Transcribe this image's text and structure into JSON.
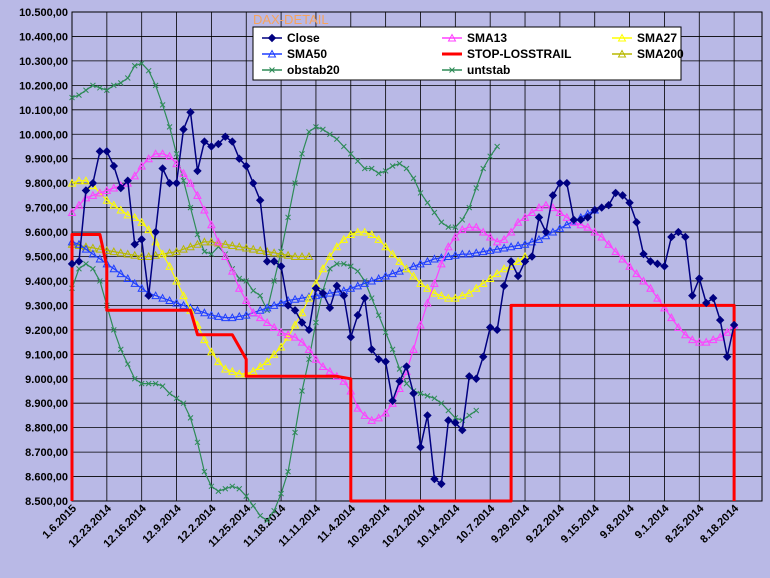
{
  "chart_data": {
    "type": "line",
    "title": "DAX-DETAIL",
    "ylim": [
      8500,
      10500
    ],
    "y_tick_step": 100,
    "x_tick_labels": [
      "1.6.2015",
      "12.23.2014",
      "12.16.2014",
      "12.9.2014",
      "12.2.2014",
      "11.25.2014",
      "11.18.2014",
      "11.11.2014",
      "11.4.2014",
      "10.28.2014",
      "10.21.2014",
      "10.14.2014",
      "10.7.2014",
      "9.29.2014",
      "9.22.2014",
      "9.15.2014",
      "9.8.2014",
      "9.1.2014",
      "8.25.2014",
      "8.18.2014"
    ],
    "points_per_label": 5,
    "legend": [
      {
        "name": "Close",
        "color": "#000080",
        "marker": "diamond"
      },
      {
        "name": "SMA13",
        "color": "#ff40ff",
        "marker": "triangle"
      },
      {
        "name": "SMA27",
        "color": "#ffff00",
        "marker": "triangle"
      },
      {
        "name": "SMA50",
        "color": "#1f3fff",
        "marker": "triangle"
      },
      {
        "name": "STOP-LOSSTRAIL",
        "color": "#ff0000",
        "marker": "none"
      },
      {
        "name": "SMA200",
        "color": "#b8b800",
        "marker": "triangle"
      },
      {
        "name": "obstab20",
        "color": "#2e8b57",
        "marker": "x"
      },
      {
        "name": "untstab",
        "color": "#2e8b57",
        "marker": "x"
      }
    ],
    "series": [
      {
        "name": "Close",
        "color": "#000080",
        "width": 1.5,
        "marker": "diamond",
        "values": [
          9470,
          9480,
          9770,
          9800,
          9930,
          9930,
          9870,
          9780,
          9810,
          9550,
          9570,
          9340,
          9600,
          9860,
          9800,
          9800,
          10020,
          10090,
          9850,
          9970,
          9950,
          9960,
          9990,
          9970,
          9900,
          9870,
          9800,
          9730,
          9480,
          9480,
          9460,
          9300,
          9280,
          9230,
          9200,
          9370,
          9350,
          9290,
          9380,
          9340,
          9170,
          9260,
          9330,
          9120,
          9080,
          9070,
          8910,
          8990,
          9050,
          8940,
          8720,
          8850,
          8590,
          8570,
          8830,
          8820,
          8790,
          9010,
          9000,
          9090,
          9210,
          9200,
          9380,
          9480,
          9420,
          9480,
          9500,
          9660,
          9600,
          9750,
          9800,
          9800,
          9650,
          9650,
          9660,
          9690,
          9700,
          9710,
          9760,
          9750,
          9720,
          9640,
          9510,
          9480,
          9470,
          9460,
          9580,
          9600,
          9580,
          9340,
          9410,
          9310,
          9330,
          9240,
          9090,
          9220
        ]
      },
      {
        "name": "SMA13",
        "color": "#ff40ff",
        "width": 1.2,
        "marker": "triangle",
        "values": [
          9680,
          9710,
          9740,
          9750,
          9760,
          9770,
          9780,
          9790,
          9800,
          9830,
          9870,
          9900,
          9920,
          9920,
          9910,
          9880,
          9840,
          9800,
          9750,
          9690,
          9630,
          9560,
          9500,
          9440,
          9370,
          9320,
          9270,
          9250,
          9230,
          9210,
          9190,
          9180,
          9170,
          9150,
          9120,
          9080,
          9050,
          9030,
          9010,
          8990,
          8950,
          8880,
          8850,
          8830,
          8840,
          8860,
          8900,
          8960,
          9030,
          9120,
          9220,
          9310,
          9390,
          9470,
          9540,
          9580,
          9610,
          9620,
          9620,
          9600,
          9580,
          9560,
          9570,
          9600,
          9640,
          9660,
          9680,
          9700,
          9710,
          9700,
          9680,
          9660,
          9640,
          9630,
          9620,
          9600,
          9580,
          9550,
          9520,
          9490,
          9460,
          9430,
          9400,
          9370,
          9330,
          9290,
          9250,
          9210,
          9180,
          9160,
          9150,
          9150,
          9160,
          9170,
          9190,
          9220
        ]
      },
      {
        "name": "SMA27",
        "color": "#ffff00",
        "width": 1.2,
        "marker": "triangle",
        "values": [
          9800,
          9810,
          9810,
          9790,
          9760,
          9730,
          9710,
          9690,
          9670,
          9660,
          9640,
          9610,
          9560,
          9510,
          9460,
          9400,
          9340,
          9280,
          9220,
          9160,
          9110,
          9070,
          9040,
          9030,
          9020,
          9020,
          9030,
          9050,
          9070,
          9100,
          9130,
          9170,
          9220,
          9270,
          9330,
          9390,
          9450,
          9500,
          9540,
          9570,
          9590,
          9600,
          9600,
          9590,
          9570,
          9540,
          9510,
          9480,
          9450,
          9420,
          9390,
          9370,
          9350,
          9340,
          9330,
          9330,
          9340,
          9350,
          9370,
          9390,
          9410,
          9430,
          9450,
          9460,
          9480,
          9500
        ]
      },
      {
        "name": "SMA50",
        "color": "#1f3fff",
        "width": 1.2,
        "marker": "triangle",
        "values": [
          9560,
          9550,
          9530,
          9510,
          9490,
          9470,
          9450,
          9430,
          9410,
          9390,
          9370,
          9350,
          9340,
          9330,
          9320,
          9310,
          9300,
          9290,
          9280,
          9270,
          9260,
          9255,
          9250,
          9250,
          9255,
          9260,
          9270,
          9280,
          9290,
          9300,
          9310,
          9320,
          9325,
          9330,
          9335,
          9340,
          9345,
          9350,
          9355,
          9360,
          9370,
          9380,
          9390,
          9400,
          9410,
          9420,
          9430,
          9440,
          9450,
          9460,
          9470,
          9480,
          9490,
          9495,
          9500,
          9505,
          9510,
          9510,
          9515,
          9520,
          9525,
          9530,
          9535,
          9540,
          9545,
          9550,
          9560,
          9570,
          9585,
          9600,
          9615,
          9630,
          9645,
          9660,
          9675,
          9690
        ]
      },
      {
        "name": "SMA200",
        "color": "#b8b800",
        "width": 1.2,
        "marker": "triangle",
        "values": [
          9550,
          9545,
          9540,
          9535,
          9530,
          9525,
          9520,
          9515,
          9510,
          9505,
          9500,
          9500,
          9505,
          9510,
          9515,
          9520,
          9530,
          9540,
          9550,
          9560,
          9560,
          9555,
          9550,
          9545,
          9540,
          9535,
          9530,
          9525,
          9520,
          9515,
          9510,
          9505,
          9500,
          9500,
          9500
        ]
      },
      {
        "name": "obstab20",
        "color": "#2e8b57",
        "width": 1.2,
        "marker": "x",
        "values": [
          10150,
          10160,
          10180,
          10200,
          10190,
          10180,
          10200,
          10210,
          10230,
          10280,
          10290,
          10260,
          10200,
          10120,
          10030,
          9920,
          9810,
          9700,
          9590,
          9520,
          9510,
          9540,
          9510,
          9450,
          9410,
          9400,
          9360,
          9340,
          9280,
          9400,
          9520,
          9660,
          9800,
          9920,
          10010,
          10030,
          10020,
          10000,
          9980,
          9950,
          9920,
          9890,
          9860,
          9860,
          9840,
          9850,
          9870,
          9880,
          9860,
          9820,
          9760,
          9720,
          9680,
          9640,
          9620,
          9620,
          9650,
          9700,
          9780,
          9860,
          9910,
          9950
        ]
      },
      {
        "name": "untstab",
        "color": "#2e8b57",
        "width": 1.2,
        "marker": "x",
        "values": [
          9370,
          9450,
          9470,
          9450,
          9400,
          9300,
          9200,
          9120,
          9060,
          9000,
          8980,
          8980,
          8980,
          8970,
          8940,
          8920,
          8900,
          8840,
          8740,
          8620,
          8560,
          8540,
          8550,
          8560,
          8550,
          8520,
          8480,
          8440,
          8420,
          8460,
          8530,
          8620,
          8780,
          8950,
          9080,
          9230,
          9360,
          9450,
          9470,
          9470,
          9460,
          9440,
          9400,
          9330,
          9260,
          9190,
          9120,
          9040,
          8980,
          8950,
          8940,
          8930,
          8920,
          8900,
          8870,
          8840,
          8830,
          8850,
          8870
        ]
      },
      {
        "name": "STOP-LOSSTRAIL",
        "color": "#ff0000",
        "width": 3,
        "marker": "none",
        "steps": [
          [
            0,
            8500
          ],
          [
            0,
            9590
          ],
          [
            4,
            9590
          ],
          [
            5,
            9460
          ],
          [
            5,
            9280
          ],
          [
            17,
            9280
          ],
          [
            18,
            9180
          ],
          [
            23,
            9180
          ],
          [
            24,
            9130
          ],
          [
            25,
            9080
          ],
          [
            25,
            9010
          ],
          [
            38,
            9010
          ],
          [
            40,
            9000
          ],
          [
            40,
            8500
          ],
          [
            63,
            8500
          ],
          [
            63,
            9300
          ],
          [
            95,
            9300
          ],
          [
            95,
            8500
          ]
        ]
      }
    ]
  }
}
